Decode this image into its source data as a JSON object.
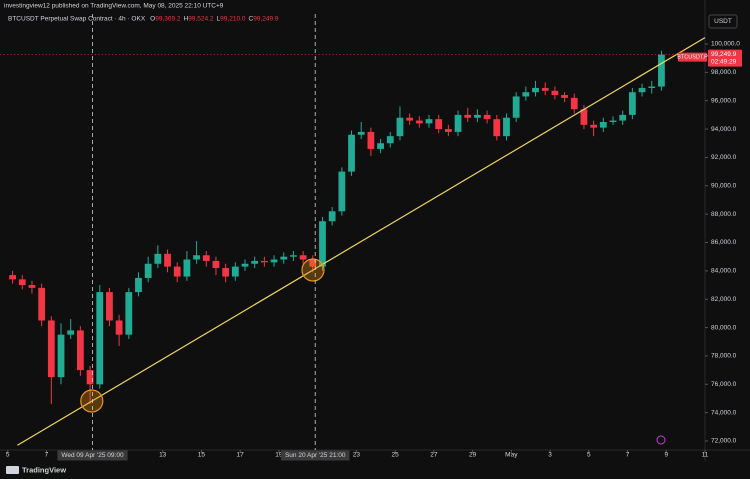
{
  "chart_data": {
    "type": "candlestick",
    "subtitle": "investingview12 published on TradingView.com, May 08, 2025 22:10 UTC+9",
    "title": "BTCUSDT Perpetual Swap Contract · 4h · OKX",
    "header_ohlc": {
      "letters": [
        "O",
        "H",
        "L",
        "C"
      ],
      "values": [
        99369.2,
        99524.2,
        99210.0,
        99249.9
      ],
      "value_labels": [
        "99,369.2",
        "99,524.2",
        "99,210.0",
        "99,249.9"
      ]
    },
    "currency": "USDT",
    "up_color": "#22ab94",
    "down_color": "#f23645",
    "x": [
      0,
      0.5,
      1,
      1.5,
      2,
      2.5,
      3,
      3.5,
      4,
      4.5,
      5,
      5.5,
      6,
      6.5,
      7,
      7.5,
      8,
      8.5,
      9,
      9.5,
      10,
      10.5,
      11,
      11.5,
      12,
      12.5,
      13,
      13.5,
      14,
      14.5,
      15,
      15.5,
      16,
      16.5,
      17,
      17.5,
      18,
      18.5,
      19,
      19.5,
      20,
      20.5,
      21,
      21.5,
      22,
      22.5,
      23,
      23.5,
      24,
      24.5,
      25,
      25.5,
      26,
      26.5,
      27,
      27.5,
      28,
      28.5,
      29,
      29.5,
      30,
      30.5,
      31,
      31.5,
      32,
      32.5,
      33,
      33.5
    ],
    "ohlc": [
      [
        83700,
        84000,
        83100,
        83400
      ],
      [
        83400,
        83700,
        82700,
        83000
      ],
      [
        83000,
        83300,
        82400,
        82800
      ],
      [
        82800,
        83100,
        80100,
        80500
      ],
      [
        80500,
        80800,
        74600,
        76500
      ],
      [
        76500,
        80300,
        76000,
        79500
      ],
      [
        79500,
        80600,
        79200,
        79800
      ],
      [
        79800,
        80100,
        76600,
        77000
      ],
      [
        77000,
        77300,
        74600,
        76000
      ],
      [
        76000,
        83000,
        75700,
        82500
      ],
      [
        82500,
        82800,
        80100,
        80500
      ],
      [
        80500,
        80900,
        78700,
        79500
      ],
      [
        79500,
        82800,
        79200,
        82500
      ],
      [
        82500,
        83900,
        82200,
        83500
      ],
      [
        83500,
        85000,
        83200,
        84500
      ],
      [
        84500,
        85800,
        84200,
        85200
      ],
      [
        85200,
        85500,
        83900,
        84300
      ],
      [
        84300,
        84600,
        83200,
        83600
      ],
      [
        83600,
        85400,
        83300,
        84800
      ],
      [
        84800,
        86100,
        84500,
        85100
      ],
      [
        85100,
        85400,
        84300,
        84700
      ],
      [
        84700,
        85000,
        83700,
        84200
      ],
      [
        84200,
        84500,
        83200,
        83600
      ],
      [
        83600,
        84600,
        83300,
        84300
      ],
      [
        84300,
        84800,
        84000,
        84500
      ],
      [
        84500,
        85000,
        84200,
        84700
      ],
      [
        84700,
        85000,
        84300,
        84600
      ],
      [
        84600,
        85100,
        84300,
        84800
      ],
      [
        84800,
        85300,
        84500,
        85000
      ],
      [
        85000,
        85400,
        84700,
        85100
      ],
      [
        85100,
        85400,
        84500,
        84800
      ],
      [
        84800,
        85100,
        83900,
        84300
      ],
      [
        84300,
        87800,
        84000,
        87500
      ],
      [
        87500,
        88500,
        87200,
        88200
      ],
      [
        88200,
        91300,
        87900,
        91000
      ],
      [
        91000,
        93900,
        90700,
        93600
      ],
      [
        93600,
        94500,
        93300,
        93800
      ],
      [
        93800,
        94100,
        92100,
        92600
      ],
      [
        92600,
        93300,
        92300,
        93000
      ],
      [
        93000,
        93800,
        92700,
        93500
      ],
      [
        93500,
        95600,
        93200,
        94800
      ],
      [
        94800,
        95100,
        94300,
        94600
      ],
      [
        94600,
        94900,
        94100,
        94400
      ],
      [
        94400,
        95000,
        94100,
        94700
      ],
      [
        94700,
        95000,
        93700,
        94000
      ],
      [
        94000,
        94300,
        93500,
        93800
      ],
      [
        93800,
        95300,
        93500,
        95000
      ],
      [
        95000,
        95500,
        94500,
        94800
      ],
      [
        94800,
        95400,
        94500,
        95000
      ],
      [
        95000,
        95300,
        94400,
        94700
      ],
      [
        94700,
        95000,
        93200,
        93500
      ],
      [
        93500,
        95100,
        93200,
        94800
      ],
      [
        94800,
        96600,
        94500,
        96300
      ],
      [
        96300,
        97000,
        96000,
        96600
      ],
      [
        96600,
        97400,
        96300,
        96900
      ],
      [
        96900,
        97300,
        96400,
        96700
      ],
      [
        96700,
        97000,
        96100,
        96400
      ],
      [
        96400,
        96600,
        95900,
        96200
      ],
      [
        96200,
        96500,
        95100,
        95400
      ],
      [
        95400,
        95700,
        94000,
        94300
      ],
      [
        94300,
        94600,
        93500,
        94100
      ],
      [
        94100,
        94800,
        93800,
        94500
      ],
      [
        94500,
        94900,
        94300,
        94600
      ],
      [
        94600,
        95300,
        94300,
        95000
      ],
      [
        95000,
        96900,
        94700,
        96600
      ],
      [
        96600,
        97200,
        96300,
        96900
      ],
      [
        96900,
        97400,
        96500,
        97000
      ],
      [
        97000,
        99524.2,
        96700,
        99249.9
      ]
    ],
    "xlim": [
      -0.4,
      36
    ],
    "xticks": [
      {
        "value": 0,
        "label": "5"
      },
      {
        "value": 2,
        "label": "7"
      },
      {
        "value": 8,
        "label": "13"
      },
      {
        "value": 10,
        "label": "15"
      },
      {
        "value": 12,
        "label": "17"
      },
      {
        "value": 14,
        "label": "19"
      },
      {
        "value": 18,
        "label": "23"
      },
      {
        "value": 20,
        "label": "25"
      },
      {
        "value": 22,
        "label": "27"
      },
      {
        "value": 24,
        "label": "29"
      },
      {
        "value": 26,
        "label": "May"
      },
      {
        "value": 28,
        "label": "3"
      },
      {
        "value": 30,
        "label": "5"
      },
      {
        "value": 32,
        "label": "7"
      },
      {
        "value": 34,
        "label": "9"
      },
      {
        "value": 36,
        "label": "11"
      }
    ],
    "ylim": [
      71365,
      102116
    ],
    "yticks": [
      {
        "value": 72000,
        "label": "72,000.0"
      },
      {
        "value": 74000,
        "label": "74,000.0"
      },
      {
        "value": 76000,
        "label": "76,000.0"
      },
      {
        "value": 78000,
        "label": "78,000.0"
      },
      {
        "value": 80000,
        "label": "80,000.0"
      },
      {
        "value": 82000,
        "label": "82,000.0"
      },
      {
        "value": 84000,
        "label": "84,000.0"
      },
      {
        "value": 86000,
        "label": "86,000.0"
      },
      {
        "value": 88000,
        "label": "88,000.0"
      },
      {
        "value": 90000,
        "label": "90,000.0"
      },
      {
        "value": 92000,
        "label": "92,000.0"
      },
      {
        "value": 94000,
        "label": "94,000.0"
      },
      {
        "value": 96000,
        "label": "96,000.0"
      },
      {
        "value": 98000,
        "label": "98,000.0"
      },
      {
        "value": 100000,
        "label": "100,000.0"
      }
    ],
    "grid": false,
    "trendline": {
      "color": "#eed65c",
      "x": [
        0.5,
        36
      ],
      "values": [
        71700,
        100450
      ]
    },
    "highlights": [
      {
        "x": 4.34,
        "value": 74820
      },
      {
        "x": 15.76,
        "value": 84060
      }
    ],
    "markers": [
      {
        "x": 4.375,
        "label": "Wed 09 Apr '25 09:00"
      },
      {
        "x": 15.875,
        "label": "Sun 20 Apr '25 21:00"
      }
    ],
    "last_price": {
      "symbol": "BTCUSDT.P",
      "value": 99249.9,
      "label": "99,249.9",
      "countdown": "02:49:29"
    }
  },
  "footer": "TradingView"
}
